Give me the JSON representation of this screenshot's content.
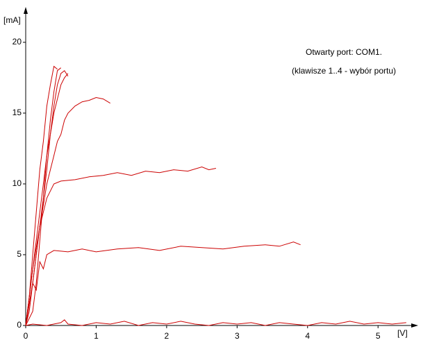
{
  "chart_data": {
    "type": "line",
    "xlabel": "[V]",
    "ylabel": "[mA]",
    "annotations": [
      "Otwarty port: COM1.",
      "(klawisze 1..4 - wybór portu)"
    ],
    "xlim": [
      0,
      5.55
    ],
    "ylim": [
      0,
      22.4
    ],
    "xticks": [
      0,
      1,
      2,
      3,
      4,
      5
    ],
    "yticks": [
      0,
      5,
      10,
      15,
      20
    ],
    "series": [
      {
        "color": "#cc0000",
        "x": [
          0,
          0.1,
          0.3,
          0.5,
          0.55,
          0.6,
          0.8,
          1.0,
          1.2,
          1.4,
          1.6,
          1.8,
          2.0,
          2.2,
          2.4,
          2.6,
          2.8,
          3.0,
          3.2,
          3.4,
          3.6,
          3.8,
          4.0,
          4.2,
          4.4,
          4.6,
          4.8,
          5.0,
          5.2,
          5.4
        ],
        "values": [
          0,
          0.1,
          0,
          0.2,
          0.4,
          0.1,
          0,
          0.2,
          0.1,
          0.3,
          0,
          0.2,
          0.1,
          0.3,
          0.1,
          0,
          0.2,
          0.1,
          0.2,
          0,
          0.2,
          0.1,
          0,
          0.2,
          0.1,
          0.3,
          0.1,
          0.2,
          0.1,
          0.2
        ]
      },
      {
        "color": "#cc0000",
        "x": [
          0,
          0.05,
          0.1,
          0.15,
          0.2,
          0.25,
          0.3,
          0.4,
          0.6,
          0.8,
          1.0,
          1.3,
          1.6,
          1.9,
          2.2,
          2.5,
          2.8,
          3.1,
          3.4,
          3.6,
          3.8,
          3.9
        ],
        "values": [
          0,
          1.5,
          3,
          2.5,
          4.5,
          4,
          5,
          5.3,
          5.2,
          5.4,
          5.2,
          5.4,
          5.5,
          5.3,
          5.6,
          5.5,
          5.4,
          5.6,
          5.7,
          5.6,
          5.9,
          5.7
        ]
      },
      {
        "color": "#cc0000",
        "x": [
          0,
          0.05,
          0.1,
          0.15,
          0.2,
          0.25,
          0.3,
          0.35,
          0.4,
          0.5,
          0.7,
          0.9,
          1.1,
          1.3,
          1.5,
          1.7,
          1.9,
          2.1,
          2.3,
          2.5,
          2.6,
          2.7
        ],
        "values": [
          0,
          2,
          4,
          5.5,
          7,
          8,
          9,
          9.5,
          10,
          10.2,
          10.3,
          10.5,
          10.6,
          10.8,
          10.6,
          10.9,
          10.8,
          11,
          10.9,
          11.2,
          11,
          11.1
        ]
      },
      {
        "color": "#cc0000",
        "x": [
          0,
          0.1,
          0.15,
          0.2,
          0.25,
          0.3,
          0.35,
          0.4,
          0.45,
          0.5,
          0.55,
          0.6,
          0.7,
          0.8,
          0.9,
          1.0,
          1.1,
          1.2
        ],
        "values": [
          0,
          3,
          5,
          7,
          8.5,
          10,
          11,
          12,
          13,
          13.5,
          14.5,
          15,
          15.5,
          15.8,
          15.9,
          16.1,
          16,
          15.7
        ]
      },
      {
        "color": "#cc0000",
        "x": [
          0,
          0.1,
          0.15,
          0.2,
          0.25,
          0.3,
          0.35,
          0.4,
          0.45,
          0.5,
          0.55,
          0.6
        ],
        "values": [
          0,
          4,
          6,
          8,
          10,
          12,
          13.5,
          15,
          16,
          17,
          17.5,
          17.8
        ]
      },
      {
        "color": "#cc0000",
        "x": [
          0,
          0.05,
          0.1,
          0.15,
          0.2,
          0.25,
          0.3,
          0.35,
          0.4,
          0.45,
          0.5,
          0.55,
          0.6
        ],
        "values": [
          0,
          1,
          3,
          5,
          7,
          9,
          11,
          13.5,
          15.5,
          17,
          17.8,
          18,
          17.6
        ]
      },
      {
        "color": "#cc0000",
        "x": [
          0,
          0.1,
          0.15,
          0.2,
          0.25,
          0.3,
          0.35,
          0.4,
          0.45,
          0.5
        ],
        "values": [
          0,
          1,
          3,
          6,
          9,
          12,
          14.5,
          16.5,
          18,
          18.2
        ]
      },
      {
        "color": "#cc0000",
        "x": [
          0,
          0.05,
          0.1,
          0.15,
          0.2,
          0.25,
          0.3,
          0.35,
          0.4,
          0.45
        ],
        "values": [
          0,
          2,
          5,
          8,
          11,
          13,
          15.5,
          17,
          18.3,
          18.1
        ]
      }
    ]
  }
}
